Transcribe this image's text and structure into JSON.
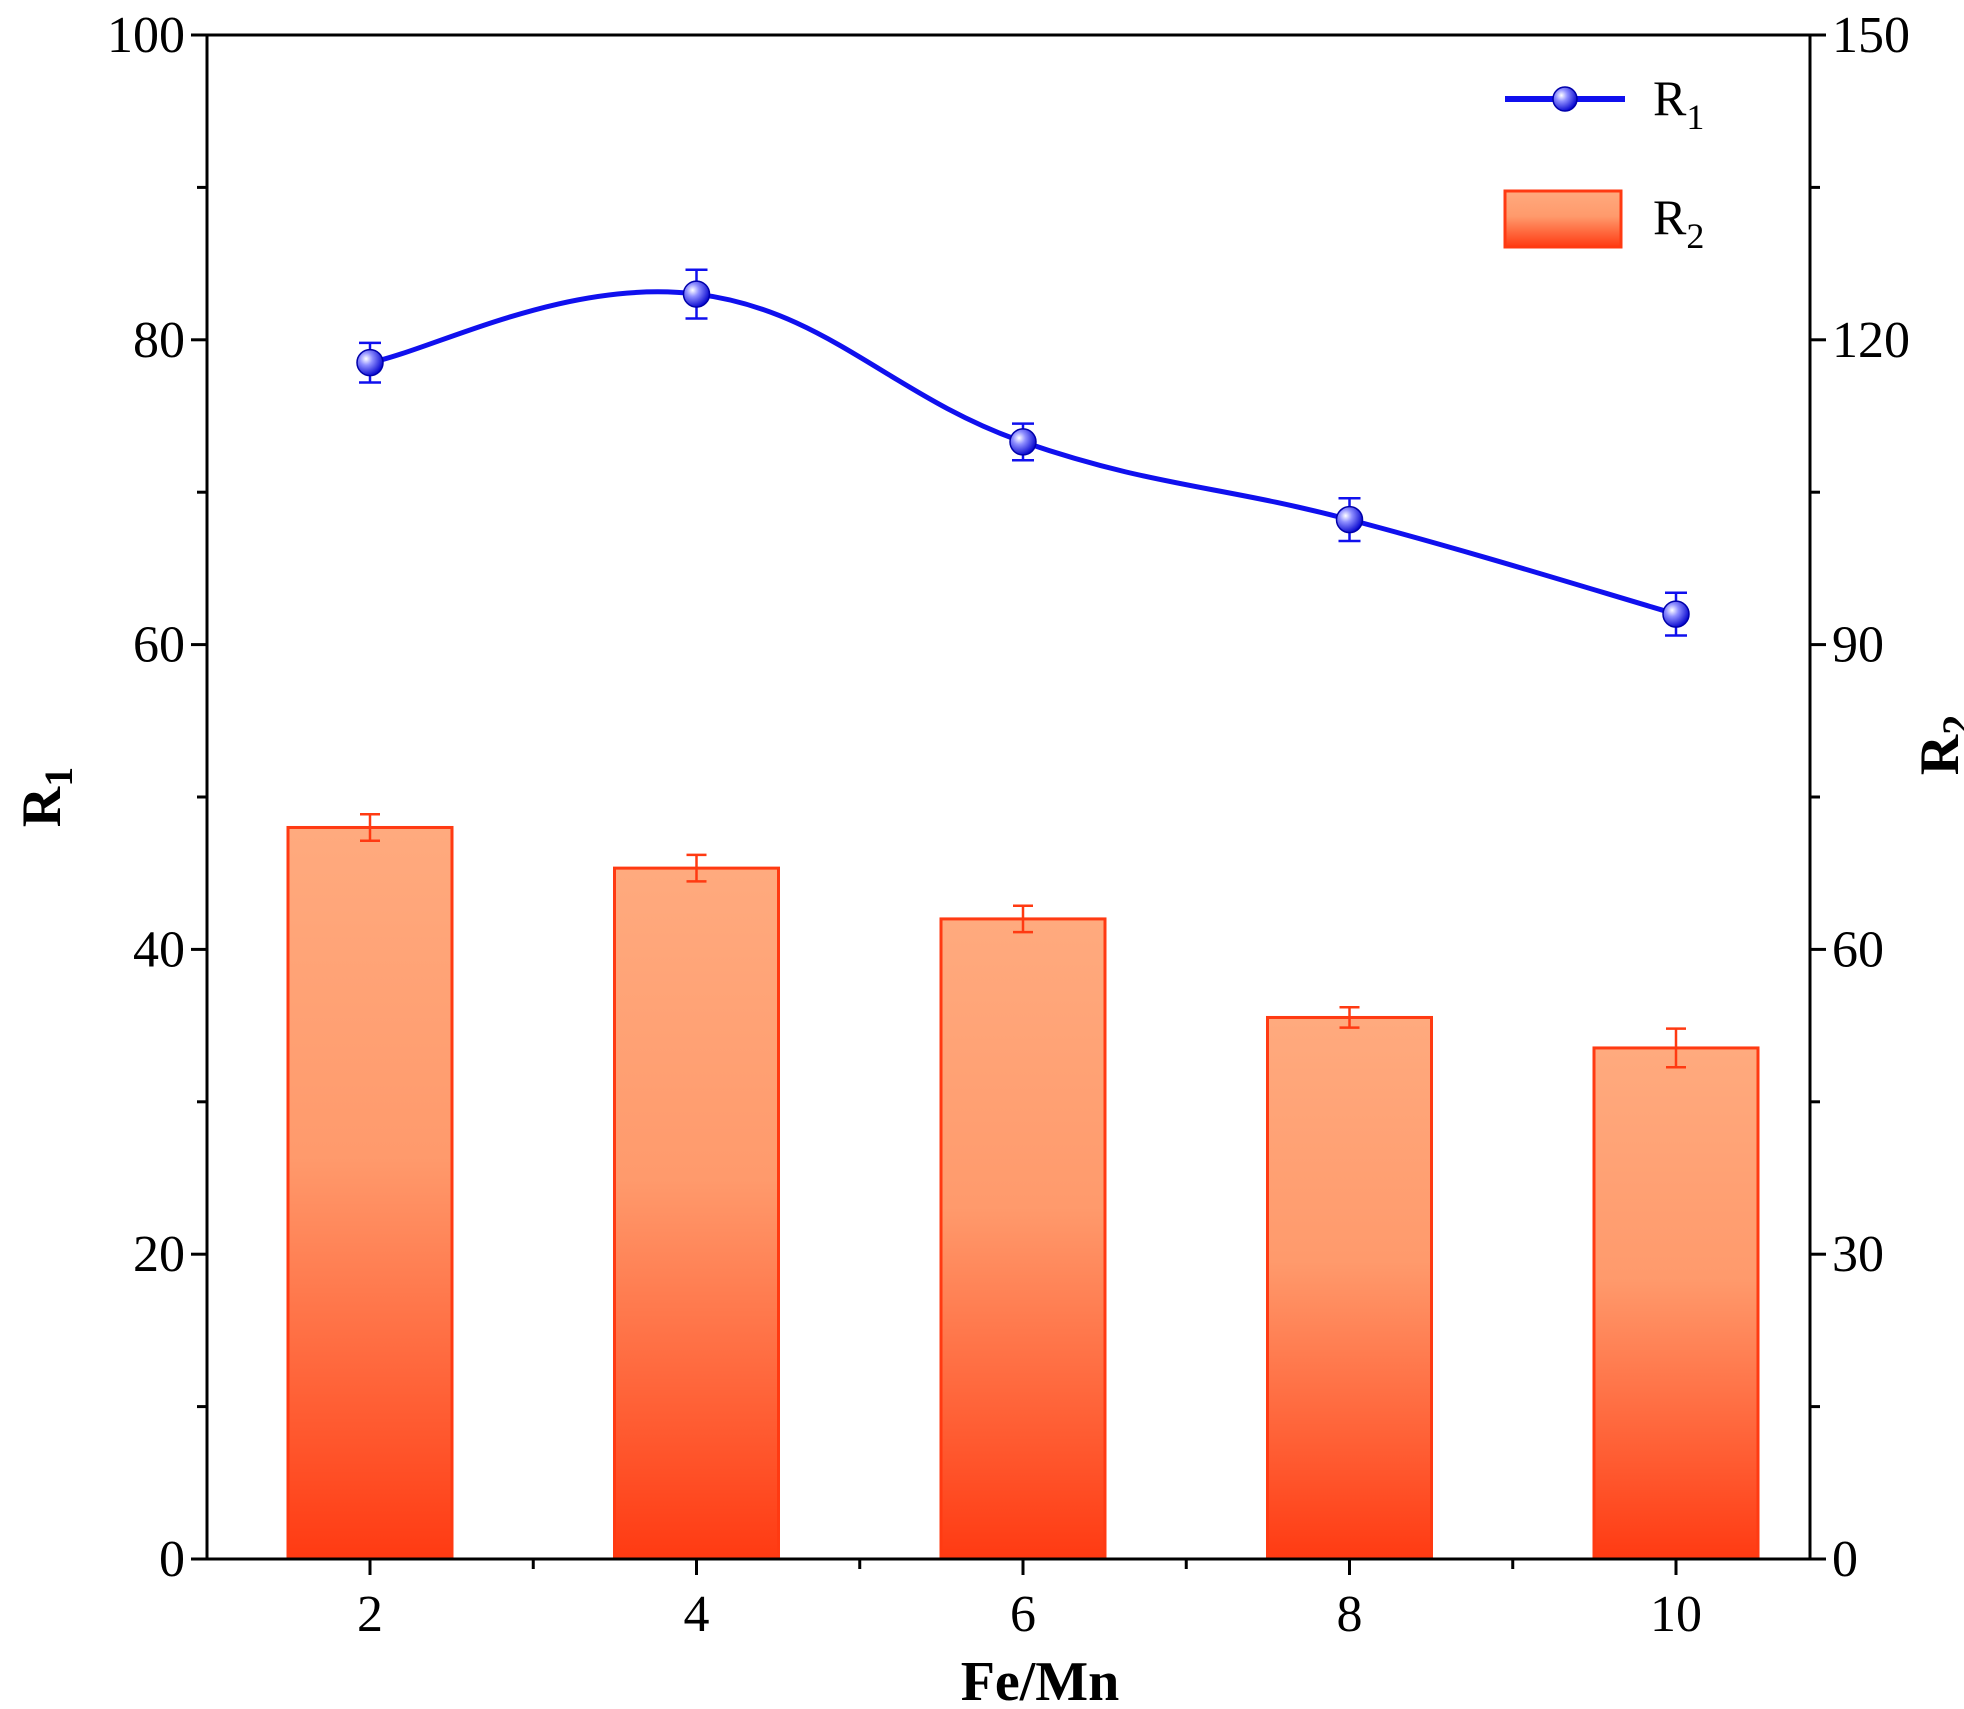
{
  "chart_data": {
    "type": "bar+line",
    "xlabel": "Fe/Mn",
    "categories": [
      "2",
      "4",
      "6",
      "8",
      "10"
    ],
    "y_left": {
      "label": "R",
      "label_sub": "1",
      "lim": [
        0,
        100
      ],
      "ticks": [
        "0",
        "20",
        "40",
        "60",
        "80",
        "100"
      ]
    },
    "y_right": {
      "label": "R",
      "label_sub": "2",
      "lim": [
        0,
        150
      ],
      "ticks": [
        "0",
        "30",
        "60",
        "90",
        "120",
        "150"
      ]
    },
    "series": [
      {
        "name": "R",
        "name_sub": "1",
        "kind": "line",
        "axis": "left",
        "values": [
          78.5,
          83.0,
          73.3,
          68.2,
          62.0
        ],
        "errors": [
          1.3,
          1.6,
          1.2,
          1.4,
          1.4
        ],
        "color": "#1010ee"
      },
      {
        "name": "R",
        "name_sub": "2",
        "kind": "bar",
        "axis": "right",
        "values": [
          72.0,
          68.0,
          63.0,
          53.3,
          50.3
        ],
        "errors": [
          1.3,
          1.3,
          1.3,
          1.0,
          1.9
        ],
        "color_top": "#ffaa7e",
        "color_bottom": "#ff3a12",
        "edge": "#ff3a12"
      }
    ],
    "legend": "top-right"
  }
}
